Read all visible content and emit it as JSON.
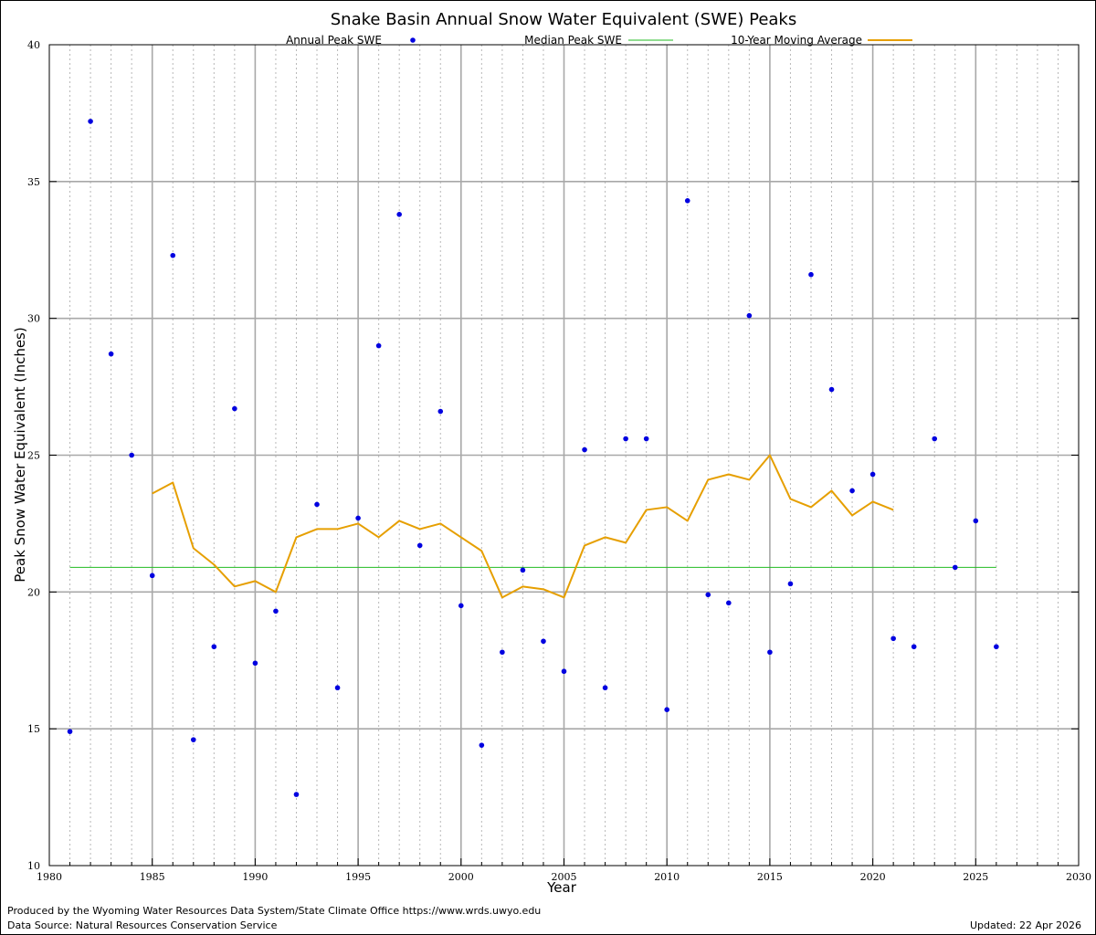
{
  "chart_data": {
    "type": "scatter",
    "title": "Snake Basin Annual Snow Water Equivalent (SWE) Peaks",
    "xlabel": "Year",
    "ylabel": "Peak Snow Water Equivalent (Inches)",
    "xlim": [
      1980,
      2030
    ],
    "ylim": [
      10,
      40
    ],
    "xticks": [
      1980,
      1985,
      1990,
      1995,
      2000,
      2005,
      2010,
      2015,
      2020,
      2025,
      2030
    ],
    "yticks": [
      10,
      15,
      20,
      25,
      30,
      35,
      40
    ],
    "grid": true,
    "legend_position": "top",
    "series": [
      {
        "name": "Annual Peak SWE",
        "kind": "points",
        "color": "#0000e0",
        "x": [
          1981,
          1982,
          1983,
          1984,
          1985,
          1986,
          1987,
          1988,
          1989,
          1990,
          1991,
          1992,
          1993,
          1994,
          1995,
          1996,
          1997,
          1998,
          1999,
          2000,
          2001,
          2002,
          2003,
          2004,
          2005,
          2006,
          2007,
          2008,
          2009,
          2010,
          2011,
          2012,
          2013,
          2014,
          2015,
          2016,
          2017,
          2018,
          2019,
          2020,
          2021,
          2022,
          2023,
          2024,
          2025,
          2026
        ],
        "y": [
          14.9,
          37.2,
          28.7,
          25.0,
          20.6,
          32.3,
          14.6,
          18.0,
          26.7,
          17.4,
          19.3,
          12.6,
          23.2,
          16.5,
          22.7,
          29.0,
          33.8,
          21.7,
          26.6,
          19.5,
          14.4,
          17.8,
          20.8,
          18.2,
          17.1,
          25.2,
          16.5,
          25.6,
          25.6,
          15.7,
          34.3,
          19.9,
          19.6,
          30.1,
          17.8,
          20.3,
          31.6,
          27.4,
          23.7,
          24.3,
          18.3,
          18.0,
          25.6,
          20.9,
          22.6,
          18.0
        ]
      },
      {
        "name": "Median Peak SWE",
        "kind": "line",
        "color": "#22bb22",
        "x": [
          1981,
          2026
        ],
        "y": [
          20.9,
          20.9
        ]
      },
      {
        "name": "10-Year Moving Average",
        "kind": "line",
        "color": "#e69f00",
        "x": [
          1985,
          1986,
          1987,
          1988,
          1989,
          1990,
          1991,
          1992,
          1993,
          1994,
          1995,
          1996,
          1997,
          1998,
          1999,
          2000,
          2001,
          2002,
          2003,
          2004,
          2005,
          2006,
          2007,
          2008,
          2009,
          2010,
          2011,
          2012,
          2013,
          2014,
          2015,
          2016,
          2017,
          2018,
          2019,
          2020,
          2021
        ],
        "y": [
          23.6,
          24.0,
          21.6,
          21.0,
          20.2,
          20.4,
          20.0,
          22.0,
          22.3,
          22.3,
          22.5,
          22.0,
          22.6,
          22.3,
          22.5,
          22.0,
          21.5,
          19.8,
          20.2,
          20.1,
          19.8,
          21.7,
          22.0,
          21.8,
          23.0,
          23.1,
          22.6,
          24.1,
          24.3,
          24.1,
          25.0,
          23.4,
          23.1,
          23.7,
          22.8,
          23.3,
          23.0
        ]
      }
    ]
  },
  "footer": {
    "produced_by": "Produced by the Wyoming Water Resources Data System/State Climate Office https://www.wrds.uwyo.edu",
    "data_source": "Data Source: Natural Resources Conservation Service",
    "updated": "Updated: 22 Apr 2026"
  }
}
